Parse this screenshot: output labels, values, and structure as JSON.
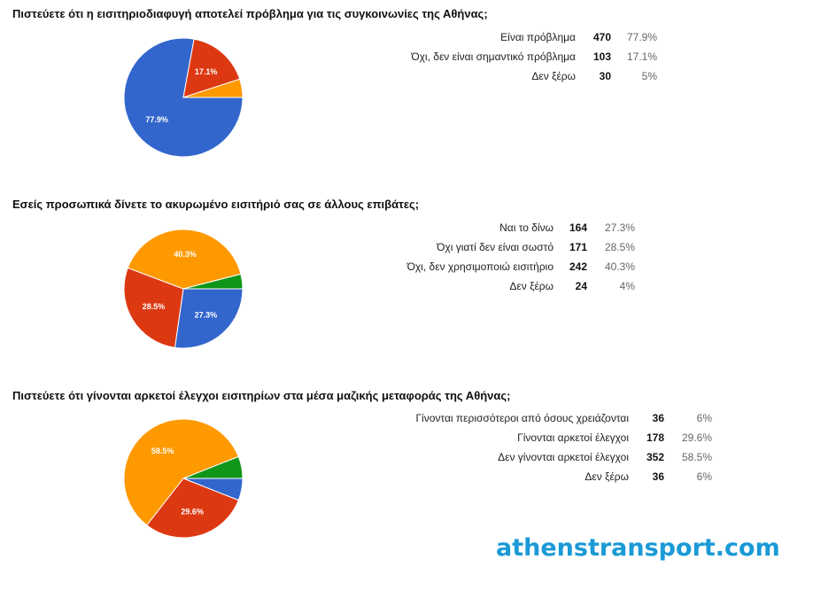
{
  "colors": {
    "blue": "#3366cc",
    "red": "#dc3912",
    "orange": "#ff9900",
    "green": "#109618"
  },
  "chart_data": [
    {
      "type": "pie",
      "title": "Πιστεύετε ότι η εισιτηριοδιαφυγή αποτελεί πρόβλημα για τις συγκοινωνίες της Αθήνας;",
      "slices": [
        {
          "label": "Είναι πρόβλημα",
          "count": "470",
          "percent": "77.9%",
          "value": 77.9,
          "color": "blue",
          "data_label": "77.9%"
        },
        {
          "label": "Όχι, δεν είναι σημαντικό πρόβλημα",
          "count": "103",
          "percent": "17.1%",
          "value": 17.1,
          "color": "red",
          "data_label": "17.1%"
        },
        {
          "label": "Δεν ξέρω",
          "count": "30",
          "percent": "5%",
          "value": 5,
          "color": "orange",
          "data_label": ""
        }
      ]
    },
    {
      "type": "pie",
      "title": "Εσείς προσωπικά δίνετε το ακυρωμένο εισιτήριό σας σε άλλους επιβάτες;",
      "slices": [
        {
          "label": "Ναι το δίνω",
          "count": "164",
          "percent": "27.3%",
          "value": 27.3,
          "color": "blue",
          "data_label": "27.3%"
        },
        {
          "label": "Όχι γιατί δεν είναι σωστό",
          "count": "171",
          "percent": "28.5%",
          "value": 28.5,
          "color": "red",
          "data_label": "28.5%"
        },
        {
          "label": "Όχι, δεν χρησιμοποιώ εισιτήριο",
          "count": "242",
          "percent": "40.3%",
          "value": 40.3,
          "color": "orange",
          "data_label": "40.3%"
        },
        {
          "label": "Δεν ξέρω",
          "count": "24",
          "percent": "4%",
          "value": 4,
          "color": "green",
          "data_label": ""
        }
      ]
    },
    {
      "type": "pie",
      "title": "Πιστεύετε ότι γίνονται αρκετοί έλεγχοι εισιτηρίων στα μέσα μαζικής μεταφοράς της Αθήνας;",
      "slices": [
        {
          "label": "Γίνονται περισσότεροι από όσους χρειάζονται",
          "count": "36",
          "percent": "6%",
          "value": 6,
          "color": "blue",
          "data_label": ""
        },
        {
          "label": "Γίνονται αρκετοί έλεγχοι",
          "count": "178",
          "percent": "29.6%",
          "value": 29.6,
          "color": "red",
          "data_label": "29.6%"
        },
        {
          "label": "Δεν γίνονται αρκετοί έλεγχοι",
          "count": "352",
          "percent": "58.5%",
          "value": 58.5,
          "color": "orange",
          "data_label": "58.5%"
        },
        {
          "label": "Δεν ξέρω",
          "count": "36",
          "percent": "6%",
          "value": 6,
          "color": "green",
          "data_label": ""
        }
      ]
    }
  ],
  "watermark": "athenstransport.com"
}
